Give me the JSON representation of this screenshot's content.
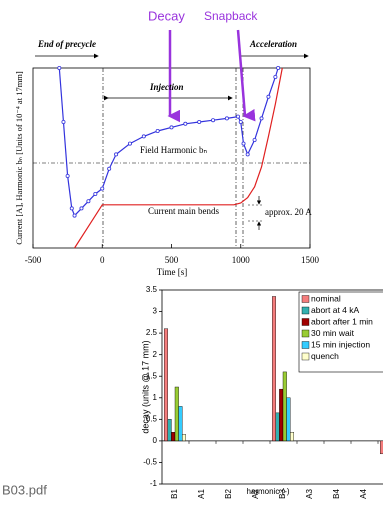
{
  "chart_data": [
    {
      "type": "line",
      "annotations": [
        "Decay",
        "Snapback",
        "End of precycle",
        "Acceleration",
        "Injection",
        "Field Harmonic bₙ",
        "Current main bends",
        "approx. 20 A"
      ],
      "x_label": "Time [s]",
      "y_label": "Current [A], Harmonic bₙ [Units of 10⁻⁴ at 17mm]",
      "xlim": [
        -500,
        1500
      ],
      "xticks": [
        -500,
        0,
        500,
        1000,
        1500
      ],
      "ylim": [
        0,
        100
      ],
      "series": [
        {
          "color": "#3333dd",
          "markers": true,
          "x": [
            -310,
            -280,
            -250,
            -220,
            -200,
            -150,
            -100,
            -50,
            0,
            50,
            100,
            200,
            300,
            400,
            500,
            600,
            700,
            800,
            900,
            980,
            1000,
            1020,
            1050,
            1100,
            1150,
            1200,
            1250,
            1270
          ],
          "values": [
            100,
            70,
            40,
            22,
            18,
            22,
            26,
            30,
            33,
            44,
            52,
            58,
            62,
            65,
            67,
            69,
            70,
            71,
            72,
            73,
            70,
            58,
            52,
            60,
            72,
            84,
            95,
            100
          ]
        },
        {
          "color": "#e02020",
          "markers": false,
          "x": [
            -200,
            -100,
            0,
            100,
            500,
            950,
            1000,
            1050,
            1100,
            1150,
            1200,
            1250,
            1300
          ],
          "values": [
            0,
            12,
            24,
            24,
            24,
            24,
            25,
            28,
            34,
            45,
            62,
            80,
            100
          ]
        }
      ]
    },
    {
      "type": "bar",
      "y_label": "decay (units @ 17 mm)",
      "x_label": "harmonic (-)",
      "categories": [
        "B1",
        "A1",
        "B2",
        "A2",
        "B3",
        "A3",
        "B4",
        "A4",
        "B5"
      ],
      "ylim": [
        -1,
        3.5
      ],
      "yticks": [
        -1,
        -0.5,
        0,
        0.5,
        1,
        1.5,
        2,
        2.5,
        3,
        3.5
      ],
      "series": [
        {
          "name": "nominal",
          "color": "#f47c7c",
          "values": [
            2.6,
            null,
            null,
            null,
            3.35,
            null,
            null,
            null,
            -0.3
          ]
        },
        {
          "name": "abort at 4 kA",
          "color": "#33b0b0",
          "values": [
            0.5,
            null,
            null,
            null,
            0.65,
            null,
            null,
            null,
            -0.15
          ]
        },
        {
          "name": "abort after 1 min",
          "color": "#a00000",
          "values": [
            0.2,
            null,
            null,
            null,
            1.2,
            null,
            null,
            null,
            -0.1
          ]
        },
        {
          "name": "30 min wait",
          "color": "#99cc33",
          "values": [
            1.25,
            null,
            null,
            null,
            1.6,
            null,
            null,
            null,
            -0.1
          ]
        },
        {
          "name": "15 min injection",
          "color": "#33ccff",
          "values": [
            0.8,
            null,
            null,
            null,
            1.0,
            null,
            null,
            null,
            -0.1
          ]
        },
        {
          "name": "quench",
          "color": "#ffffcc",
          "values": [
            0.15,
            null,
            null,
            null,
            0.2,
            null,
            null,
            null,
            -0.1
          ]
        }
      ]
    }
  ],
  "footer": "B03.pdf"
}
